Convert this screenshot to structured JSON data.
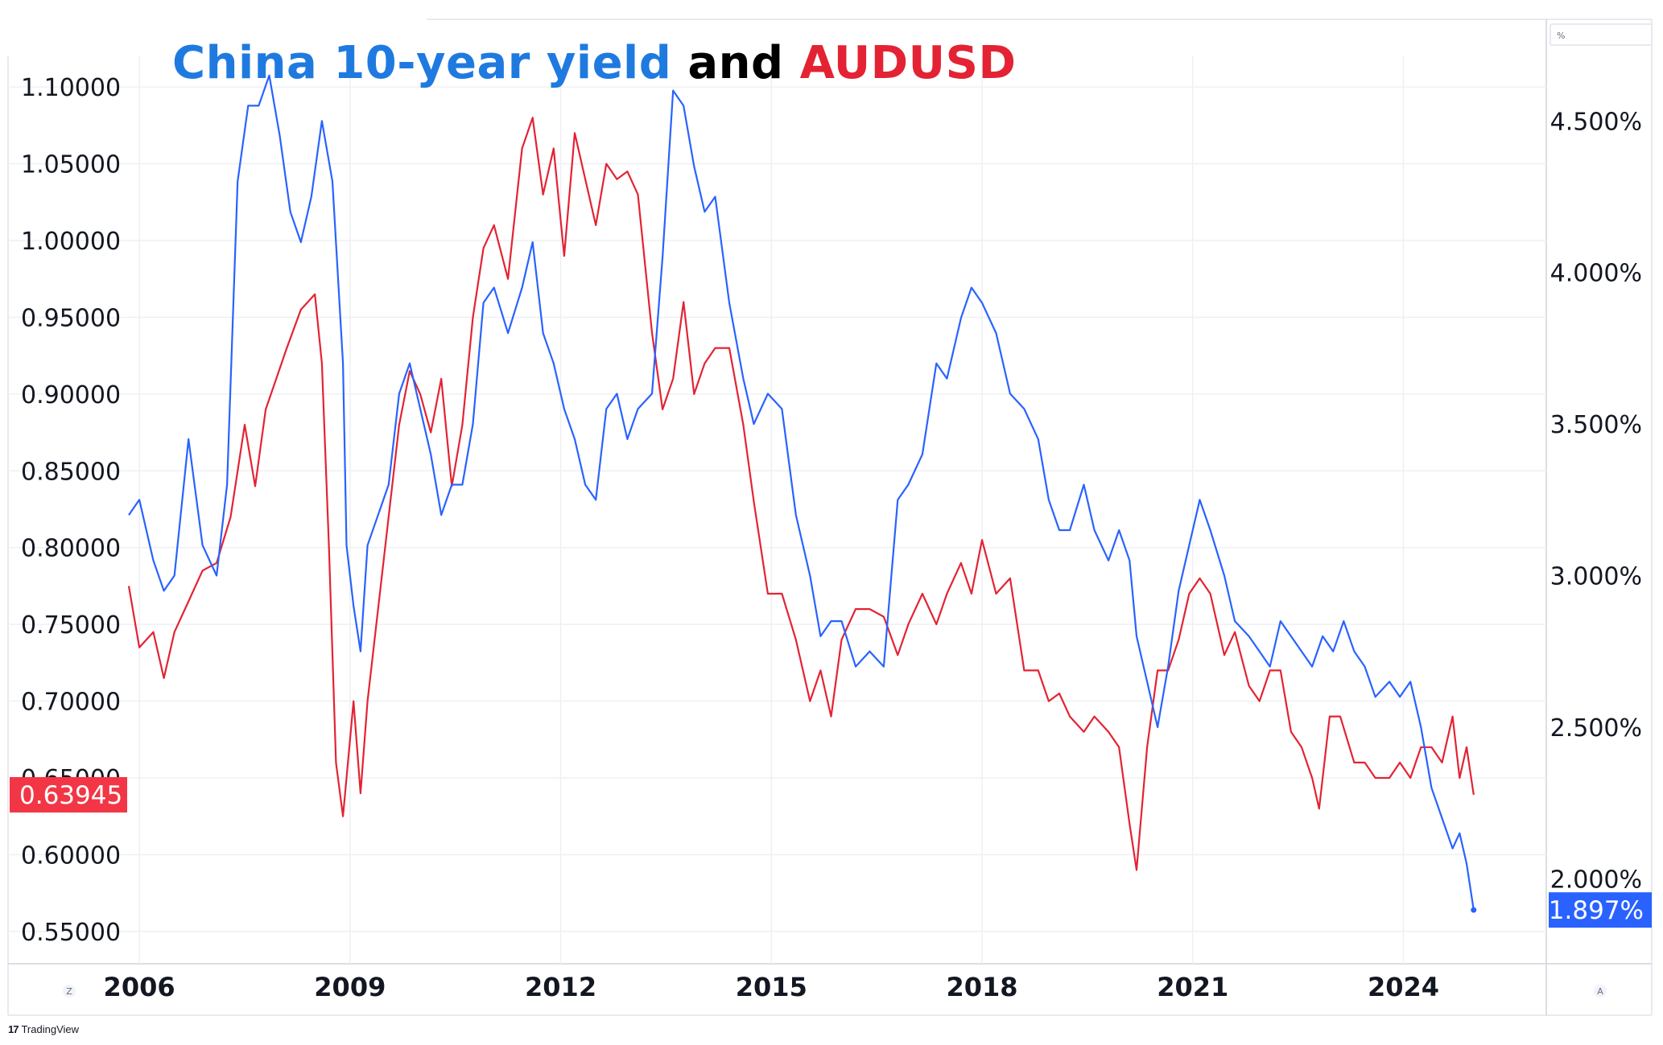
{
  "title": {
    "part1": "China 10-year yield",
    "part2": "and",
    "part3": "AUDUSD"
  },
  "colors": {
    "title_blue": "#1f7ae0",
    "china_line": "#2962ff",
    "aud_line": "#e32333",
    "aud_badge": "#f23645",
    "china_badge": "#2962ff",
    "grid": "#eef0f4"
  },
  "branding": "TradingView",
  "scale_mode_labels": {
    "left": "Z",
    "right": "A",
    "top_right": "%"
  },
  "chart_data": {
    "type": "line",
    "title": "China 10-year yield and AUDUSD",
    "x_ticks": [
      "2006",
      "2009",
      "2012",
      "2015",
      "2018",
      "2021",
      "2024"
    ],
    "xlim": [
      2005.85,
      2026.0
    ],
    "left_axis": {
      "ticks": [
        "1.10000",
        "1.05000",
        "1.00000",
        "0.95000",
        "0.90000",
        "0.85000",
        "0.80000",
        "0.75000",
        "0.70000",
        "0.65000",
        "0.60000",
        "0.55000"
      ],
      "ylim": [
        0.53,
        1.12
      ]
    },
    "right_axis": {
      "ticks": [
        "4.500%",
        "4.000%",
        "3.500%",
        "3.000%",
        "2.500%",
        "2.000%"
      ],
      "ylim": [
        1.725,
        4.713
      ]
    },
    "grid": true,
    "series": [
      {
        "name": "AUDUSD",
        "axis": "left",
        "last_value": "0.63945",
        "x": [
          2005.85,
          2006.0,
          2006.2,
          2006.35,
          2006.5,
          2006.7,
          2006.9,
          2007.1,
          2007.3,
          2007.5,
          2007.65,
          2007.8,
          2007.95,
          2008.1,
          2008.3,
          2008.5,
          2008.6,
          2008.7,
          2008.8,
          2008.9,
          2008.95,
          2009.05,
          2009.15,
          2009.25,
          2009.4,
          2009.55,
          2009.7,
          2009.85,
          2010.0,
          2010.15,
          2010.3,
          2010.45,
          2010.6,
          2010.75,
          2010.9,
          2011.05,
          2011.25,
          2011.45,
          2011.6,
          2011.75,
          2011.9,
          2012.05,
          2012.2,
          2012.35,
          2012.5,
          2012.65,
          2012.8,
          2012.95,
          2013.1,
          2013.3,
          2013.45,
          2013.6,
          2013.75,
          2013.9,
          2014.05,
          2014.2,
          2014.4,
          2014.6,
          2014.75,
          2014.95,
          2015.15,
          2015.35,
          2015.55,
          2015.7,
          2015.85,
          2016.0,
          2016.2,
          2016.4,
          2016.6,
          2016.8,
          2016.95,
          2017.15,
          2017.35,
          2017.5,
          2017.7,
          2017.85,
          2018.0,
          2018.2,
          2018.4,
          2018.6,
          2018.8,
          2018.95,
          2019.1,
          2019.25,
          2019.45,
          2019.6,
          2019.8,
          2019.95,
          2020.1,
          2020.2,
          2020.35,
          2020.5,
          2020.65,
          2020.8,
          2020.95,
          2021.1,
          2021.25,
          2021.45,
          2021.6,
          2021.8,
          2021.95,
          2022.1,
          2022.25,
          2022.4,
          2022.55,
          2022.7,
          2022.8,
          2022.95,
          2023.1,
          2023.3,
          2023.45,
          2023.6,
          2023.8,
          2023.95,
          2024.1,
          2024.25,
          2024.4,
          2024.55,
          2024.7,
          2024.8,
          2024.9,
          2025.0
        ],
        "y": [
          0.775,
          0.735,
          0.745,
          0.715,
          0.745,
          0.765,
          0.785,
          0.79,
          0.82,
          0.88,
          0.84,
          0.89,
          0.91,
          0.93,
          0.955,
          0.965,
          0.92,
          0.8,
          0.66,
          0.625,
          0.65,
          0.7,
          0.64,
          0.7,
          0.76,
          0.82,
          0.88,
          0.915,
          0.9,
          0.875,
          0.91,
          0.84,
          0.88,
          0.95,
          0.995,
          1.01,
          0.975,
          1.06,
          1.08,
          1.03,
          1.06,
          0.99,
          1.07,
          1.04,
          1.01,
          1.05,
          1.04,
          1.045,
          1.03,
          0.94,
          0.89,
          0.91,
          0.96,
          0.9,
          0.92,
          0.93,
          0.93,
          0.88,
          0.83,
          0.77,
          0.77,
          0.74,
          0.7,
          0.72,
          0.69,
          0.74,
          0.76,
          0.76,
          0.755,
          0.73,
          0.75,
          0.77,
          0.75,
          0.77,
          0.79,
          0.77,
          0.805,
          0.77,
          0.78,
          0.72,
          0.72,
          0.7,
          0.705,
          0.69,
          0.68,
          0.69,
          0.68,
          0.67,
          0.62,
          0.59,
          0.67,
          0.72,
          0.72,
          0.74,
          0.77,
          0.78,
          0.77,
          0.73,
          0.745,
          0.71,
          0.7,
          0.72,
          0.72,
          0.68,
          0.67,
          0.65,
          0.63,
          0.69,
          0.69,
          0.66,
          0.66,
          0.65,
          0.65,
          0.66,
          0.65,
          0.67,
          0.67,
          0.66,
          0.69,
          0.65,
          0.67,
          0.639
        ]
      },
      {
        "name": "China 10-year yield",
        "axis": "right",
        "last_value": "1.897%",
        "x": [
          2005.85,
          2006.0,
          2006.2,
          2006.35,
          2006.5,
          2006.7,
          2006.9,
          2007.1,
          2007.25,
          2007.4,
          2007.55,
          2007.7,
          2007.85,
          2008.0,
          2008.15,
          2008.3,
          2008.45,
          2008.6,
          2008.75,
          2008.9,
          2008.95,
          2009.05,
          2009.15,
          2009.25,
          2009.4,
          2009.55,
          2009.7,
          2009.85,
          2010.0,
          2010.15,
          2010.3,
          2010.45,
          2010.6,
          2010.75,
          2010.9,
          2011.05,
          2011.25,
          2011.45,
          2011.6,
          2011.75,
          2011.9,
          2012.05,
          2012.2,
          2012.35,
          2012.5,
          2012.65,
          2012.8,
          2012.95,
          2013.1,
          2013.3,
          2013.45,
          2013.6,
          2013.75,
          2013.9,
          2014.05,
          2014.2,
          2014.4,
          2014.6,
          2014.75,
          2014.95,
          2015.15,
          2015.35,
          2015.55,
          2015.7,
          2015.85,
          2016.0,
          2016.2,
          2016.4,
          2016.6,
          2016.8,
          2016.95,
          2017.15,
          2017.35,
          2017.5,
          2017.7,
          2017.85,
          2018.0,
          2018.2,
          2018.4,
          2018.6,
          2018.8,
          2018.95,
          2019.1,
          2019.25,
          2019.45,
          2019.6,
          2019.8,
          2019.95,
          2020.1,
          2020.2,
          2020.35,
          2020.5,
          2020.65,
          2020.8,
          2020.95,
          2021.1,
          2021.25,
          2021.45,
          2021.6,
          2021.8,
          2021.95,
          2022.1,
          2022.25,
          2022.4,
          2022.55,
          2022.7,
          2022.85,
          2023.0,
          2023.15,
          2023.3,
          2023.45,
          2023.6,
          2023.8,
          2023.95,
          2024.1,
          2024.25,
          2024.4,
          2024.55,
          2024.7,
          2024.8,
          2024.9,
          2025.0
        ],
        "y": [
          3.2,
          3.25,
          3.05,
          2.95,
          3.0,
          3.45,
          3.1,
          3.0,
          3.3,
          4.3,
          4.55,
          4.55,
          4.65,
          4.45,
          4.2,
          4.1,
          4.25,
          4.5,
          4.3,
          3.7,
          3.1,
          2.9,
          2.75,
          3.1,
          3.2,
          3.3,
          3.6,
          3.7,
          3.55,
          3.4,
          3.2,
          3.3,
          3.3,
          3.5,
          3.9,
          3.95,
          3.8,
          3.95,
          4.1,
          3.8,
          3.7,
          3.55,
          3.45,
          3.3,
          3.25,
          3.55,
          3.6,
          3.45,
          3.55,
          3.6,
          4.05,
          4.6,
          4.55,
          4.35,
          4.2,
          4.25,
          3.9,
          3.65,
          3.5,
          3.6,
          3.55,
          3.2,
          3.0,
          2.8,
          2.85,
          2.85,
          2.7,
          2.75,
          2.7,
          3.25,
          3.3,
          3.4,
          3.7,
          3.65,
          3.85,
          3.95,
          3.9,
          3.8,
          3.6,
          3.55,
          3.45,
          3.25,
          3.15,
          3.15,
          3.3,
          3.15,
          3.05,
          3.15,
          3.05,
          2.8,
          2.65,
          2.5,
          2.7,
          2.95,
          3.1,
          3.25,
          3.15,
          3.0,
          2.85,
          2.8,
          2.75,
          2.7,
          2.85,
          2.8,
          2.75,
          2.7,
          2.8,
          2.75,
          2.85,
          2.75,
          2.7,
          2.6,
          2.65,
          2.6,
          2.65,
          2.5,
          2.3,
          2.2,
          2.1,
          2.15,
          2.05,
          1.897
        ]
      }
    ]
  }
}
